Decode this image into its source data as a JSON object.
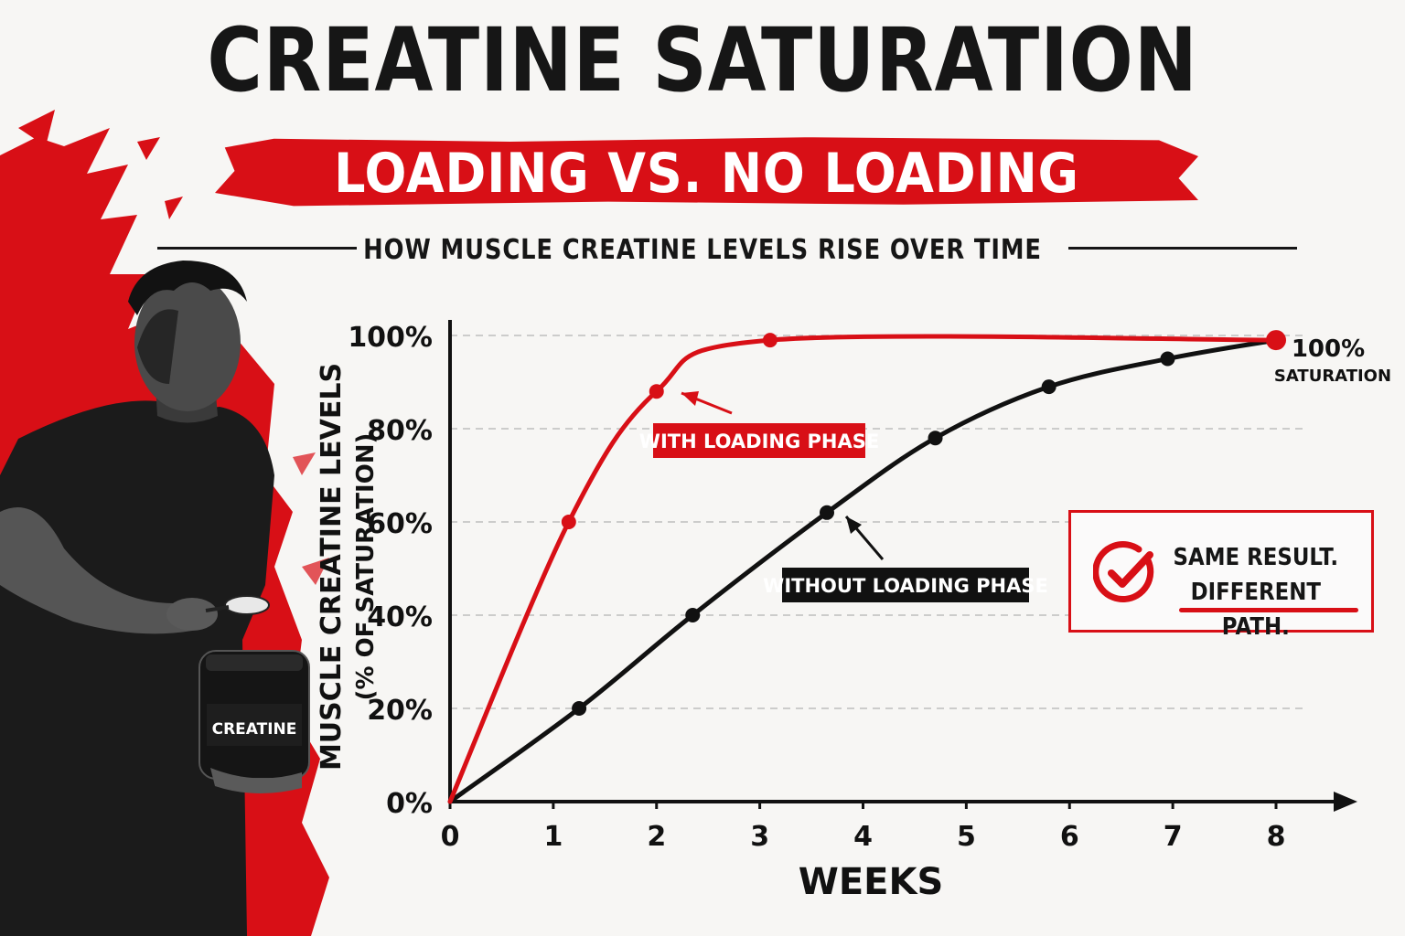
{
  "header": {
    "title": "CREATINE SATURATION",
    "subtitle": "LOADING VS. NO LOADING",
    "tagline": "HOW MUSCLE CREATINE LEVELS RISE OVER TIME"
  },
  "illustration": {
    "jar_label": "CREATINE"
  },
  "callout": {
    "line1": "SAME RESULT.",
    "line2": "DIFFERENT PATH."
  },
  "colors": {
    "accent": "#d80f16",
    "ink": "#161616",
    "background": "#f7f6f4"
  },
  "chart_data": {
    "type": "line",
    "title": "",
    "xlabel": "WEEKS",
    "ylabel_line1": "MUSCLE CREATINE LEVELS",
    "ylabel_line2": "(% OF SATURATION)",
    "x_ticks": [
      "0",
      "1",
      "2",
      "3",
      "4",
      "5",
      "6",
      "7",
      "8"
    ],
    "y_ticks": [
      "0%",
      "20%",
      "40%",
      "60%",
      "80%",
      "100%"
    ],
    "xlim": [
      0,
      8
    ],
    "ylim": [
      0,
      100
    ],
    "grid": true,
    "series": [
      {
        "name": "WITH LOADING PHASE",
        "color": "#d80f16",
        "x": [
          0,
          1.15,
          2.0,
          3.1,
          8.0
        ],
        "y": [
          0,
          60,
          88,
          99,
          99
        ]
      },
      {
        "name": "WITHOUT LOADING PHASE",
        "color": "#111111",
        "x": [
          0,
          1.25,
          2.35,
          3.65,
          4.7,
          5.8,
          6.95,
          8.0
        ],
        "y": [
          0,
          20,
          40,
          62,
          78,
          89,
          95,
          99
        ]
      }
    ],
    "end_annotation": {
      "value": "100%",
      "label": "SATURATION"
    }
  }
}
